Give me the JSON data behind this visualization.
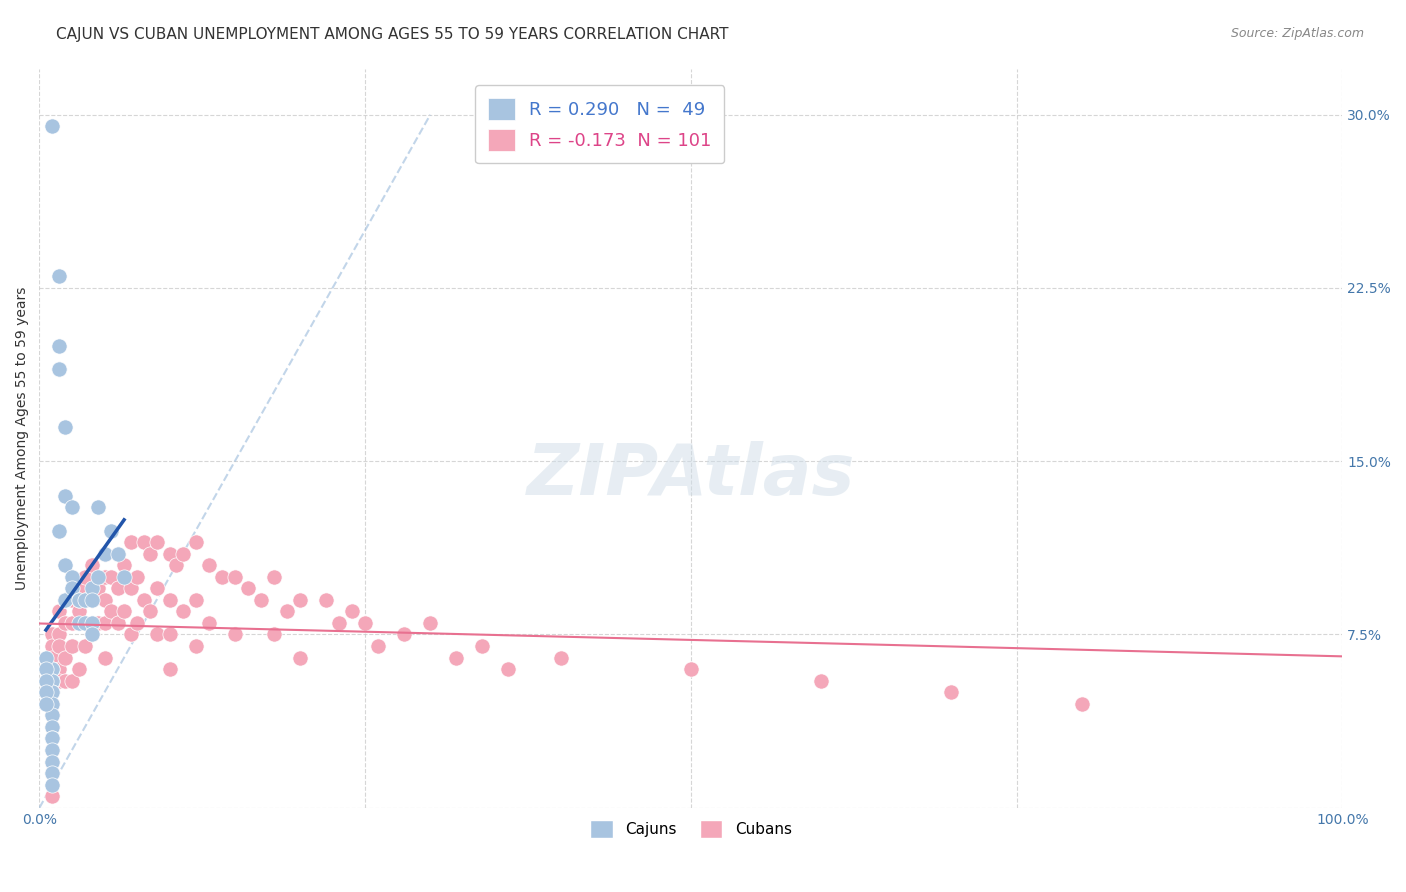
{
  "title": "CAJUN VS CUBAN UNEMPLOYMENT AMONG AGES 55 TO 59 YEARS CORRELATION CHART",
  "source": "Source: ZipAtlas.com",
  "xlabel": "",
  "ylabel": "Unemployment Among Ages 55 to 59 years",
  "xlim": [
    0,
    1.0
  ],
  "ylim": [
    0,
    0.32
  ],
  "xticks": [
    0.0,
    0.25,
    0.5,
    0.75,
    1.0
  ],
  "xtick_labels": [
    "0.0%",
    "",
    "",
    "",
    "100.0%"
  ],
  "yticks": [
    0.0,
    0.075,
    0.15,
    0.225,
    0.3
  ],
  "ytick_labels": [
    "",
    "7.5%",
    "15.0%",
    "22.5%",
    "30.0%"
  ],
  "cajun_color": "#a8c4e0",
  "cuban_color": "#f4a7b9",
  "cajun_line_color": "#2255aa",
  "cuban_line_color": "#e87090",
  "diag_line_color": "#a8c4e0",
  "legend_r_cajun": "R = 0.290",
  "legend_n_cajun": "N =  49",
  "legend_r_cuban": "R = -0.173",
  "legend_n_cuban": "N = 101",
  "cajun_R": 0.29,
  "cajun_N": 49,
  "cuban_R": -0.173,
  "cuban_N": 101,
  "cajun_x": [
    0.01,
    0.01,
    0.01,
    0.01,
    0.01,
    0.01,
    0.01,
    0.01,
    0.01,
    0.01,
    0.01,
    0.01,
    0.01,
    0.01,
    0.01,
    0.01,
    0.015,
    0.015,
    0.015,
    0.015,
    0.015,
    0.02,
    0.02,
    0.02,
    0.02,
    0.02,
    0.025,
    0.025,
    0.025,
    0.03,
    0.03,
    0.03,
    0.035,
    0.035,
    0.04,
    0.04,
    0.04,
    0.04,
    0.045,
    0.045,
    0.005,
    0.005,
    0.005,
    0.005,
    0.005,
    0.05,
    0.055,
    0.06,
    0.065
  ],
  "cajun_y": [
    0.295,
    0.06,
    0.06,
    0.055,
    0.055,
    0.05,
    0.05,
    0.045,
    0.04,
    0.035,
    0.03,
    0.03,
    0.025,
    0.02,
    0.015,
    0.01,
    0.23,
    0.2,
    0.19,
    0.19,
    0.12,
    0.165,
    0.135,
    0.105,
    0.09,
    0.09,
    0.13,
    0.1,
    0.095,
    0.09,
    0.09,
    0.08,
    0.09,
    0.08,
    0.095,
    0.09,
    0.08,
    0.075,
    0.13,
    0.1,
    0.065,
    0.06,
    0.055,
    0.05,
    0.045,
    0.11,
    0.12,
    0.11,
    0.1
  ],
  "cuban_x": [
    0.01,
    0.01,
    0.01,
    0.01,
    0.01,
    0.01,
    0.01,
    0.01,
    0.01,
    0.01,
    0.01,
    0.01,
    0.01,
    0.01,
    0.01,
    0.015,
    0.015,
    0.015,
    0.015,
    0.015,
    0.02,
    0.02,
    0.02,
    0.02,
    0.025,
    0.025,
    0.025,
    0.025,
    0.025,
    0.03,
    0.03,
    0.03,
    0.035,
    0.035,
    0.035,
    0.04,
    0.04,
    0.04,
    0.045,
    0.045,
    0.05,
    0.05,
    0.05,
    0.05,
    0.05,
    0.055,
    0.055,
    0.06,
    0.06,
    0.06,
    0.065,
    0.065,
    0.07,
    0.07,
    0.07,
    0.075,
    0.075,
    0.08,
    0.08,
    0.085,
    0.085,
    0.09,
    0.09,
    0.09,
    0.1,
    0.1,
    0.1,
    0.1,
    0.105,
    0.11,
    0.11,
    0.12,
    0.12,
    0.12,
    0.13,
    0.13,
    0.14,
    0.15,
    0.15,
    0.16,
    0.17,
    0.18,
    0.18,
    0.19,
    0.2,
    0.2,
    0.22,
    0.23,
    0.24,
    0.25,
    0.26,
    0.28,
    0.3,
    0.32,
    0.34,
    0.36,
    0.4,
    0.5,
    0.6,
    0.7,
    0.8
  ],
  "cuban_y": [
    0.075,
    0.075,
    0.07,
    0.065,
    0.06,
    0.055,
    0.05,
    0.045,
    0.04,
    0.035,
    0.03,
    0.025,
    0.02,
    0.015,
    0.005,
    0.085,
    0.075,
    0.07,
    0.06,
    0.055,
    0.09,
    0.08,
    0.065,
    0.055,
    0.1,
    0.09,
    0.08,
    0.07,
    0.055,
    0.095,
    0.085,
    0.06,
    0.1,
    0.09,
    0.07,
    0.105,
    0.09,
    0.075,
    0.095,
    0.08,
    0.11,
    0.1,
    0.09,
    0.08,
    0.065,
    0.1,
    0.085,
    0.11,
    0.095,
    0.08,
    0.105,
    0.085,
    0.115,
    0.095,
    0.075,
    0.1,
    0.08,
    0.115,
    0.09,
    0.11,
    0.085,
    0.115,
    0.095,
    0.075,
    0.11,
    0.09,
    0.075,
    0.06,
    0.105,
    0.11,
    0.085,
    0.115,
    0.09,
    0.07,
    0.105,
    0.08,
    0.1,
    0.1,
    0.075,
    0.095,
    0.09,
    0.1,
    0.075,
    0.085,
    0.09,
    0.065,
    0.09,
    0.08,
    0.085,
    0.08,
    0.07,
    0.075,
    0.08,
    0.065,
    0.07,
    0.06,
    0.065,
    0.06,
    0.055,
    0.05,
    0.045
  ],
  "background_color": "#ffffff",
  "grid_color": "#cccccc",
  "title_fontsize": 11,
  "axis_label_fontsize": 10,
  "tick_fontsize": 10,
  "legend_fontsize": 13
}
